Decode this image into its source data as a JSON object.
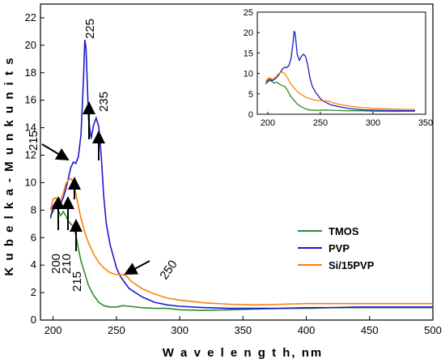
{
  "chart_data": [
    {
      "type": "line",
      "title": "",
      "xlabel": "W a v e l e n g t h, nm",
      "ylabel": "K u b e l k a - M u n k   u n i t s",
      "xlim": [
        190,
        500
      ],
      "ylim": [
        0,
        23
      ],
      "xticks": [
        200,
        250,
        300,
        350,
        400,
        450,
        500
      ],
      "yticks": [
        0,
        2,
        4,
        6,
        8,
        10,
        12,
        14,
        16,
        18,
        20,
        22
      ],
      "legend_position": "lower-right",
      "grid": false,
      "series": [
        {
          "name": "TMOS",
          "color": "#2e8b2e",
          "points": [
            [
              198,
              7.6
            ],
            [
              200,
              7.9
            ],
            [
              202,
              8.3
            ],
            [
              204,
              8.0
            ],
            [
              206,
              7.6
            ],
            [
              208,
              7.9
            ],
            [
              210,
              7.6
            ],
            [
              212,
              7.2
            ],
            [
              214,
              7.0
            ],
            [
              216,
              6.8
            ],
            [
              218,
              6.2
            ],
            [
              220,
              5.2
            ],
            [
              222,
              4.3
            ],
            [
              225,
              3.4
            ],
            [
              228,
              2.5
            ],
            [
              232,
              1.8
            ],
            [
              236,
              1.3
            ],
            [
              240,
              1.05
            ],
            [
              245,
              0.95
            ],
            [
              250,
              0.95
            ],
            [
              255,
              1.05
            ],
            [
              260,
              1.0
            ],
            [
              270,
              0.9
            ],
            [
              280,
              0.85
            ],
            [
              290,
              0.85
            ],
            [
              300,
              0.75
            ],
            [
              320,
              0.7
            ],
            [
              340,
              0.75
            ],
            [
              360,
              0.8
            ],
            [
              380,
              0.85
            ],
            [
              400,
              0.85
            ],
            [
              420,
              0.9
            ],
            [
              440,
              0.9
            ],
            [
              460,
              0.9
            ],
            [
              480,
              0.9
            ],
            [
              500,
              0.9
            ]
          ]
        },
        {
          "name": "PVP",
          "color": "#1a1acc",
          "points": [
            [
              198,
              7.4
            ],
            [
              200,
              8.3
            ],
            [
              202,
              8.6
            ],
            [
              204,
              8.2
            ],
            [
              206,
              8.5
            ],
            [
              208,
              8.9
            ],
            [
              210,
              9.5
            ],
            [
              212,
              10.3
            ],
            [
              214,
              11.1
            ],
            [
              216,
              11.5
            ],
            [
              218,
              11.4
            ],
            [
              220,
              11.9
            ],
            [
              222,
              13.5
            ],
            [
              224,
              17.5
            ],
            [
              225,
              20.4
            ],
            [
              226,
              19.8
            ],
            [
              228,
              14.6
            ],
            [
              230,
              13.2
            ],
            [
              232,
              14.2
            ],
            [
              234,
              14.7
            ],
            [
              236,
              14.1
            ],
            [
              238,
              12.0
            ],
            [
              240,
              9.0
            ],
            [
              242,
              7.0
            ],
            [
              245,
              5.5
            ],
            [
              248,
              4.5
            ],
            [
              250,
              3.8
            ],
            [
              253,
              3.2
            ],
            [
              256,
              2.8
            ],
            [
              260,
              2.3
            ],
            [
              270,
              1.7
            ],
            [
              280,
              1.3
            ],
            [
              290,
              1.1
            ],
            [
              300,
              1.0
            ],
            [
              320,
              0.9
            ],
            [
              340,
              0.85
            ],
            [
              360,
              0.85
            ],
            [
              380,
              0.85
            ],
            [
              400,
              0.9
            ],
            [
              420,
              0.9
            ],
            [
              440,
              0.95
            ],
            [
              460,
              0.95
            ],
            [
              480,
              0.95
            ],
            [
              500,
              0.95
            ]
          ]
        },
        {
          "name": "Si/15PVP",
          "color": "#ff7f0e",
          "points": [
            [
              198,
              8.0
            ],
            [
              200,
              8.8
            ],
            [
              202,
              8.9
            ],
            [
              204,
              8.5
            ],
            [
              206,
              8.8
            ],
            [
              208,
              9.2
            ],
            [
              210,
              9.9
            ],
            [
              212,
              10.2
            ],
            [
              214,
              10.3
            ],
            [
              216,
              10.0
            ],
            [
              218,
              9.2
            ],
            [
              220,
              8.3
            ],
            [
              222,
              7.4
            ],
            [
              225,
              6.4
            ],
            [
              228,
              5.6
            ],
            [
              232,
              4.8
            ],
            [
              236,
              4.2
            ],
            [
              240,
              3.8
            ],
            [
              245,
              3.45
            ],
            [
              250,
              3.3
            ],
            [
              255,
              3.3
            ],
            [
              258,
              3.2
            ],
            [
              262,
              2.8
            ],
            [
              270,
              2.3
            ],
            [
              280,
              1.9
            ],
            [
              290,
              1.6
            ],
            [
              300,
              1.45
            ],
            [
              320,
              1.25
            ],
            [
              340,
              1.15
            ],
            [
              360,
              1.1
            ],
            [
              380,
              1.15
            ],
            [
              400,
              1.2
            ],
            [
              420,
              1.2
            ],
            [
              440,
              1.2
            ],
            [
              460,
              1.2
            ],
            [
              480,
              1.2
            ],
            [
              500,
              1.2
            ]
          ]
        }
      ],
      "annotations": [
        {
          "text": "225",
          "x": 225
        },
        {
          "text": "235",
          "x": 235
        },
        {
          "text": "215",
          "x": 215
        },
        {
          "text": "200",
          "x": 200
        },
        {
          "text": "210",
          "x": 210
        },
        {
          "text": "215",
          "x": 215
        },
        {
          "text": "250",
          "x": 250
        }
      ]
    },
    {
      "type": "line",
      "title": "",
      "xlim": [
        190,
        350
      ],
      "ylim": [
        0,
        25
      ],
      "xticks": [
        200,
        250,
        300,
        350
      ],
      "yticks": [
        0,
        5,
        10,
        15,
        20,
        25
      ],
      "series": "same as main chart (TMOS, PVP, Si/15PVP) clipped to 350 nm"
    }
  ]
}
